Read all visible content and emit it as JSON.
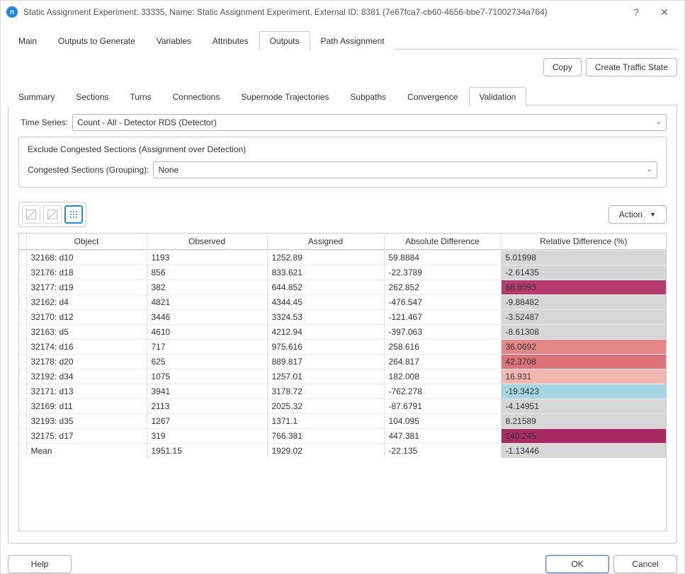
{
  "window": {
    "title": "Static Assignment Experiment: 33335, Name: Static Assignment Experiment, External ID: 8381  {7e67fca7-cb60-4656-bbe7-71002734a764}",
    "help_glyph": "?",
    "close_glyph": "✕"
  },
  "main_tabs": {
    "items": [
      "Main",
      "Outputs to Generate",
      "Variables",
      "Attributes",
      "Outputs",
      "Path Assignment"
    ],
    "active_index": 4
  },
  "action_buttons": {
    "copy": "Copy",
    "create_traffic_state": "Create Traffic State"
  },
  "inner_tabs": {
    "items": [
      "Summary",
      "Sections",
      "Turns",
      "Connections",
      "Supernode Trajectories",
      "Subpaths",
      "Convergence",
      "Validation"
    ],
    "active_index": 7
  },
  "form": {
    "time_series_label": "Time Series:",
    "time_series_value": "Count - All - Detector RDS (Detector)",
    "exclude_title": "Exclude Congested Sections (Assignment over Detection)",
    "congested_label": "Congested Sections (Grouping):",
    "congested_value": "None"
  },
  "toolbar": {
    "action_label": "Action"
  },
  "table": {
    "columns": [
      "Object",
      "Observed",
      "Assigned",
      "Absolute Difference",
      "Relative Difference (%)"
    ],
    "default_rel_bg": "#d7d7d7",
    "rows": [
      {
        "object": "32168: d10",
        "observed": "1193",
        "assigned": "1252.89",
        "abs": "59.8884",
        "rel": "5.01998",
        "rel_bg": "#d7d7d7"
      },
      {
        "object": "32176: d18",
        "observed": "856",
        "assigned": "833.621",
        "abs": "-22.3789",
        "rel": "-2.61435",
        "rel_bg": "#d7d7d7"
      },
      {
        "object": "32177: d19",
        "observed": "382",
        "assigned": "644.852",
        "abs": "262.852",
        "rel": "68.8093",
        "rel_bg": "#b63a6d"
      },
      {
        "object": "32162: d4",
        "observed": "4821",
        "assigned": "4344.45",
        "abs": "-476.547",
        "rel": "-9.88482",
        "rel_bg": "#d7d7d7"
      },
      {
        "object": "32170: d12",
        "observed": "3446",
        "assigned": "3324.53",
        "abs": "-121.467",
        "rel": "-3.52487",
        "rel_bg": "#d7d7d7"
      },
      {
        "object": "32163: d5",
        "observed": "4610",
        "assigned": "4212.94",
        "abs": "-397.063",
        "rel": "-8.61308",
        "rel_bg": "#d7d7d7"
      },
      {
        "object": "32174: d16",
        "observed": "717",
        "assigned": "975.616",
        "abs": "258.616",
        "rel": "36.0692",
        "rel_bg": "#e38886"
      },
      {
        "object": "32178: d20",
        "observed": "625",
        "assigned": "889.817",
        "abs": "264.817",
        "rel": "42.3708",
        "rel_bg": "#dd7377"
      },
      {
        "object": "32192: d34",
        "observed": "1075",
        "assigned": "1257.01",
        "abs": "182.008",
        "rel": "16.931",
        "rel_bg": "#f2b7ae"
      },
      {
        "object": "32171: d13",
        "observed": "3941",
        "assigned": "3178.72",
        "abs": "-762.278",
        "rel": "-19.3423",
        "rel_bg": "#a6d6e4"
      },
      {
        "object": "32169: d11",
        "observed": "2113",
        "assigned": "2025.32",
        "abs": "-87.6791",
        "rel": "-4.14951",
        "rel_bg": "#d7d7d7"
      },
      {
        "object": "32193: d35",
        "observed": "1267",
        "assigned": "1371.1",
        "abs": "104.095",
        "rel": "8.21589",
        "rel_bg": "#d7d7d7"
      },
      {
        "object": "32175: d17",
        "observed": "319",
        "assigned": "766.381",
        "abs": "447.381",
        "rel": "140.245",
        "rel_bg": "#a82a63"
      },
      {
        "object": "Mean",
        "observed": "1951.15",
        "assigned": "1929.02",
        "abs": "-22.135",
        "rel": "-1.13446",
        "rel_bg": "#d7d7d7"
      }
    ]
  },
  "footer": {
    "help": "Help",
    "ok": "OK",
    "cancel": "Cancel"
  }
}
